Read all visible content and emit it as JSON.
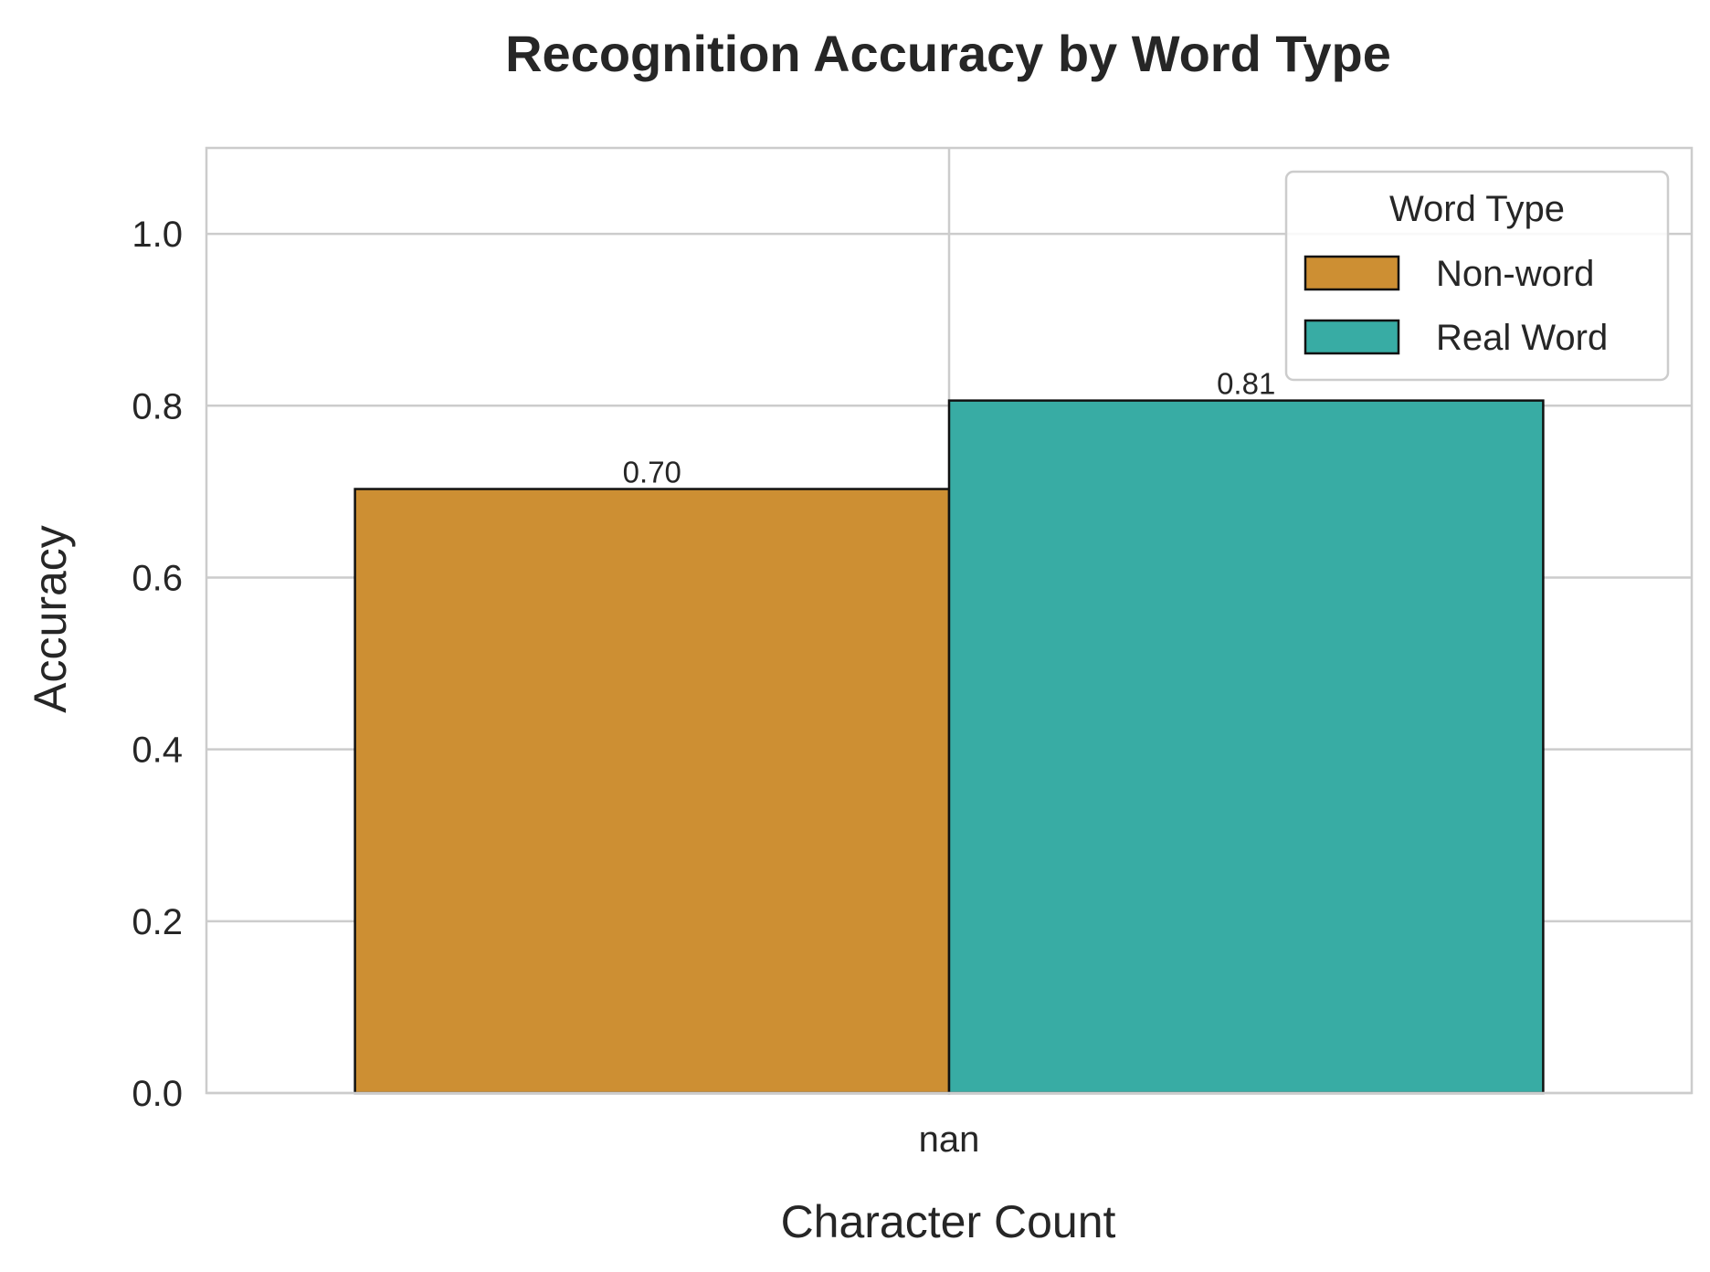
{
  "chart_data": {
    "type": "bar",
    "title": "Recognition Accuracy by Word Type",
    "xlabel": "Character Count",
    "ylabel": "Accuracy",
    "categories": [
      "nan"
    ],
    "ylim": [
      0,
      1.1
    ],
    "yticks": [
      0.0,
      0.2,
      0.4,
      0.6,
      0.8,
      1.0
    ],
    "ytick_labels": [
      "0.0",
      "0.2",
      "0.4",
      "0.6",
      "0.8",
      "1.0"
    ],
    "grid": true,
    "legend": {
      "title": "Word Type",
      "position": "top-right"
    },
    "series": [
      {
        "name": "Non-word",
        "values": [
          0.703
        ],
        "labels": [
          "0.70"
        ],
        "color": "#cd8f33"
      },
      {
        "name": "Real Word",
        "values": [
          0.806
        ],
        "labels": [
          "0.81"
        ],
        "color": "#38aca4"
      }
    ]
  }
}
